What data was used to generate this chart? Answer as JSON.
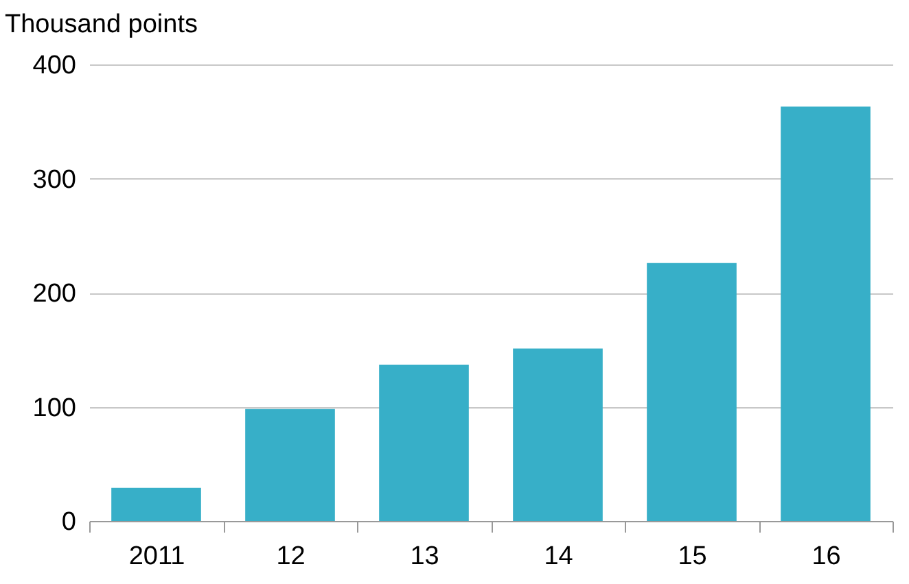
{
  "chart_data": {
    "type": "bar",
    "ylabel": "Thousand points",
    "categories": [
      "2011",
      "12",
      "13",
      "14",
      "15",
      "16"
    ],
    "values": [
      29,
      98,
      137,
      151,
      226,
      363
    ],
    "color": "#37afc8",
    "ylim": [
      0,
      400
    ],
    "yticks": [
      0,
      100,
      200,
      300,
      400
    ],
    "grid": "y"
  }
}
